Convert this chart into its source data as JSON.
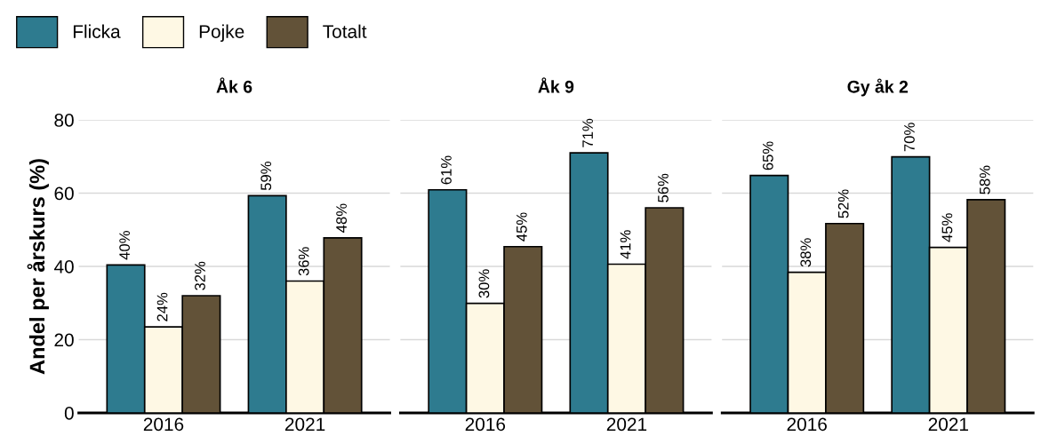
{
  "chart_data": [
    {
      "type": "bar",
      "title": "Åk 6",
      "ylabel": "Andel per årskurs (%)",
      "categories": [
        "2016",
        "2021"
      ],
      "ylim": [
        0,
        80
      ],
      "yticks": [
        0,
        20,
        40,
        60,
        80
      ],
      "grid": "y",
      "legend": "top left",
      "tick_labels": "xy",
      "series": [
        {
          "name": "Flicka",
          "color": "#2e7b8f",
          "values": [
            40.4,
            59.3
          ],
          "value_labels": [
            "40%",
            "59%"
          ]
        },
        {
          "name": "Pojke",
          "color": "#fef8e4",
          "values": [
            23.5,
            36
          ],
          "value_labels": [
            "24%",
            "36%"
          ]
        },
        {
          "name": "Totalt",
          "color": "#625238",
          "values": [
            32,
            47.8
          ],
          "value_labels": [
            "32%",
            "48%"
          ]
        }
      ]
    },
    {
      "type": "bar",
      "title": "Åk 9",
      "categories": [
        "2016",
        "2021"
      ],
      "ylim": [
        0,
        80
      ],
      "yticks": [
        0,
        20,
        40,
        60,
        80
      ],
      "grid": "y",
      "tick_labels": "x",
      "series": [
        {
          "name": "Flicka",
          "color": "#2e7b8f",
          "values": [
            60.9,
            71
          ],
          "value_labels": [
            "61%",
            "71%"
          ]
        },
        {
          "name": "Pojke",
          "color": "#fef8e4",
          "values": [
            29.9,
            40.6
          ],
          "value_labels": [
            "30%",
            "41%"
          ]
        },
        {
          "name": "Totalt",
          "color": "#625238",
          "values": [
            45.4,
            56
          ],
          "value_labels": [
            "45%",
            "56%"
          ]
        }
      ]
    },
    {
      "type": "bar",
      "title": "Gy åk 2",
      "categories": [
        "2016",
        "2021"
      ],
      "ylim": [
        0,
        80
      ],
      "yticks": [
        0,
        20,
        40,
        60,
        80
      ],
      "grid": "y",
      "tick_labels": "x",
      "series": [
        {
          "name": "Flicka",
          "color": "#2e7b8f",
          "values": [
            64.8,
            69.9
          ],
          "value_labels": [
            "65%",
            "70%"
          ]
        },
        {
          "name": "Pojke",
          "color": "#fef8e4",
          "values": [
            38.4,
            45.2
          ],
          "value_labels": [
            "38%",
            "45%"
          ]
        },
        {
          "name": "Totalt",
          "color": "#625238",
          "values": [
            51.7,
            58.2
          ],
          "value_labels": [
            "52%",
            "58%"
          ]
        }
      ]
    }
  ]
}
